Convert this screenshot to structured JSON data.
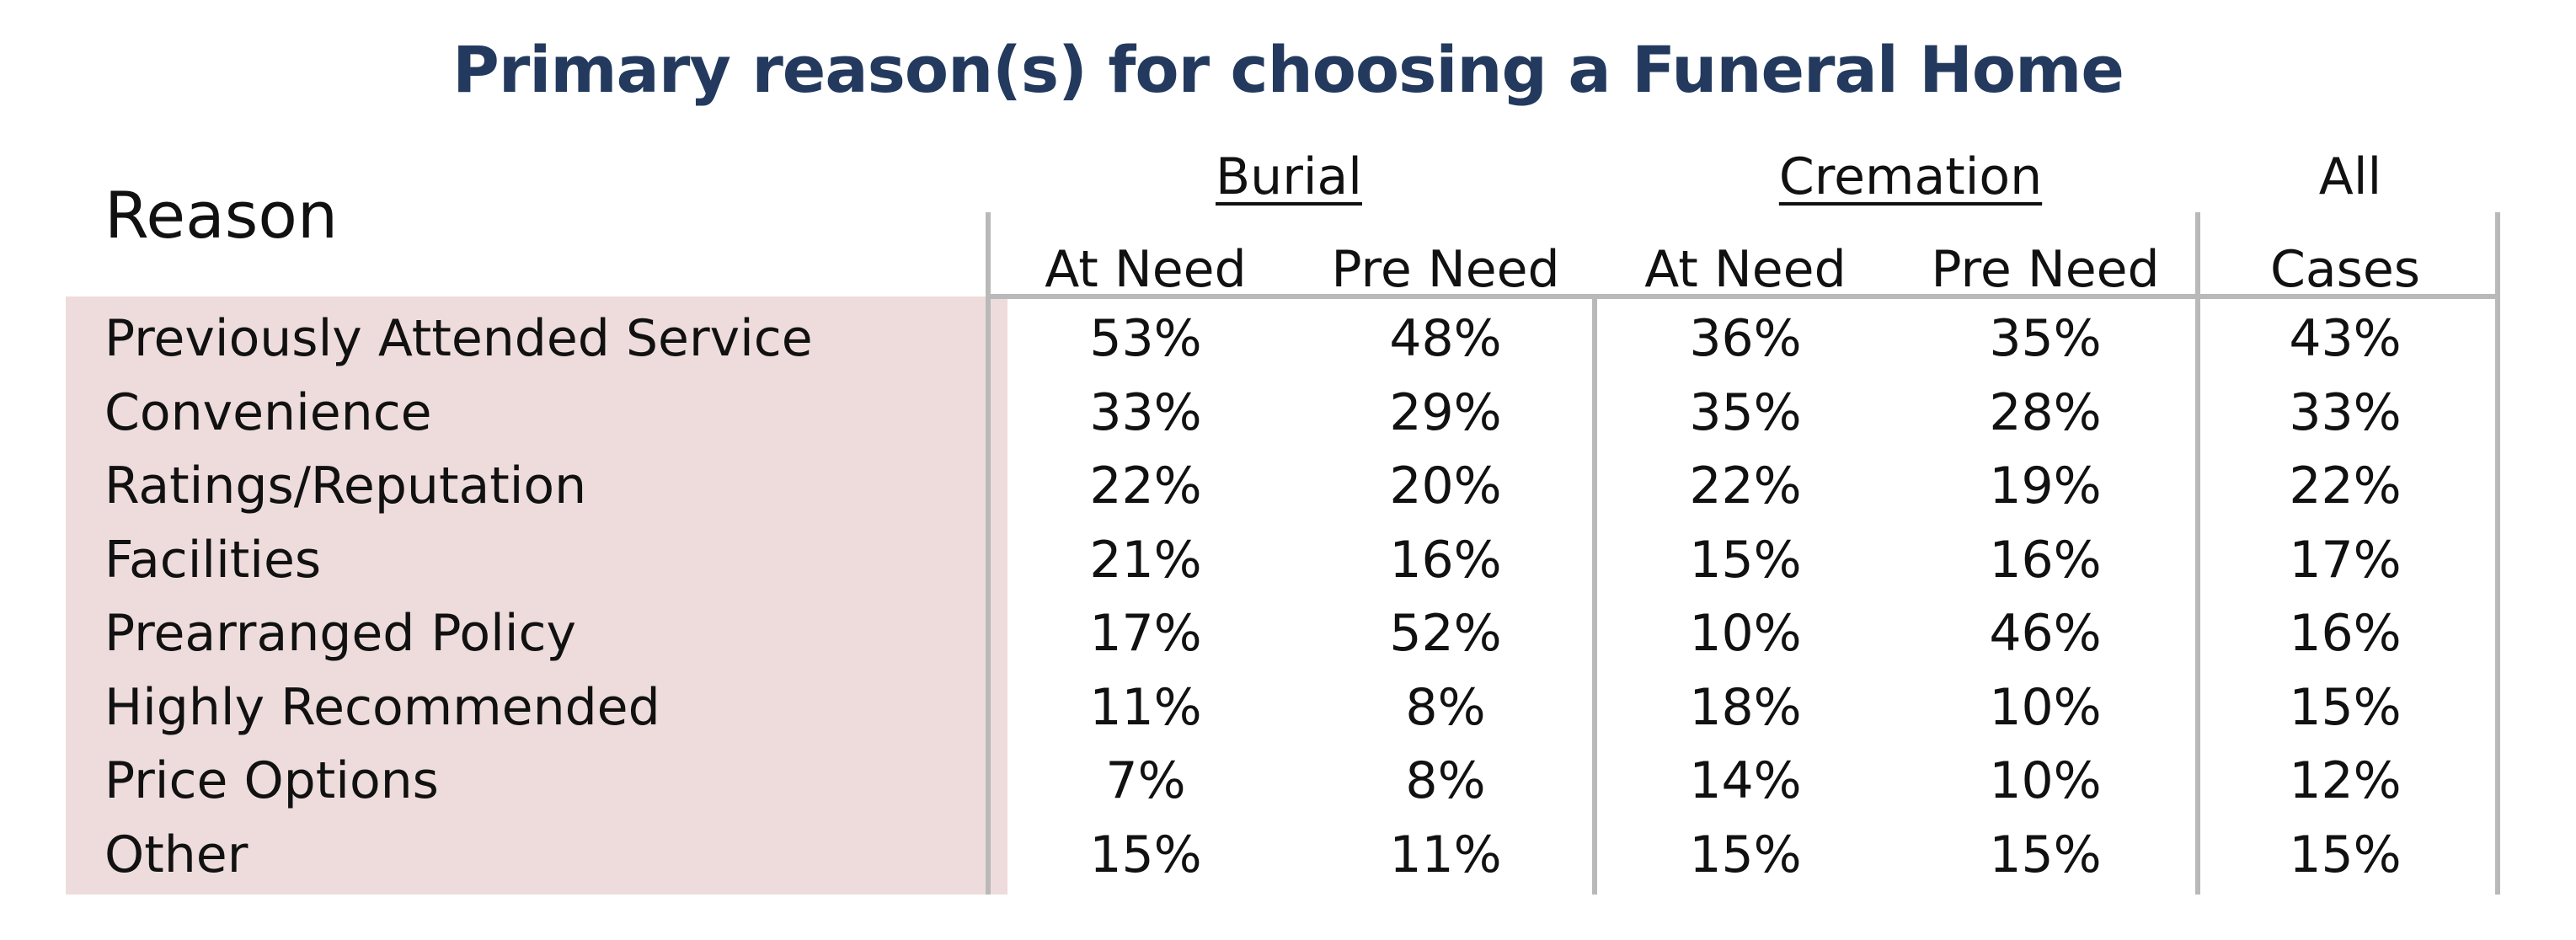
{
  "title": "Primary reason(s) for choosing a Funeral Home",
  "chart_data": {
    "type": "table",
    "title": "Primary reason(s) for choosing a Funeral Home",
    "row_header": "Reason",
    "groups": [
      "Burial",
      "Cremation",
      "All"
    ],
    "columns": [
      "At Need",
      "Pre Need",
      "At Need",
      "Pre Need",
      "Cases"
    ],
    "rows": [
      {
        "label": "Previously Attended Service",
        "values": [
          "53%",
          "48%",
          "36%",
          "35%",
          "43%"
        ]
      },
      {
        "label": "Convenience",
        "values": [
          "33%",
          "29%",
          "35%",
          "28%",
          "33%"
        ]
      },
      {
        "label": "Ratings/Reputation",
        "values": [
          "22%",
          "20%",
          "22%",
          "19%",
          "22%"
        ]
      },
      {
        "label": "Facilities",
        "values": [
          "21%",
          "16%",
          "15%",
          "16%",
          "17%"
        ]
      },
      {
        "label": "Prearranged Policy",
        "values": [
          "17%",
          "52%",
          "10%",
          "46%",
          "16%"
        ]
      },
      {
        "label": "Highly Recommended",
        "values": [
          "11%",
          "8%",
          "18%",
          "10%",
          "15%"
        ]
      },
      {
        "label": "Price Options",
        "values": [
          "7%",
          "8%",
          "14%",
          "10%",
          "12%"
        ]
      },
      {
        "label": "Other",
        "values": [
          "15%",
          "11%",
          "15%",
          "15%",
          "15%"
        ]
      }
    ],
    "colors": {
      "title": "#233a5e",
      "reason_fill": "#eedcdc",
      "rule": "#b9b9b9"
    }
  }
}
